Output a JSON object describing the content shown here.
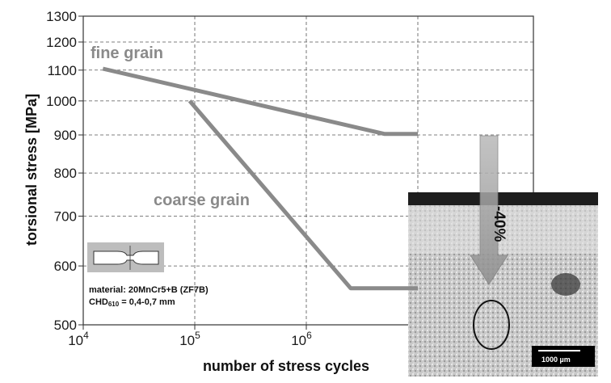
{
  "chart_data": {
    "type": "line",
    "xscale": "log",
    "yscale": "log",
    "xlim": [
      10000,
      10000000
    ],
    "ylim": [
      500,
      1300
    ],
    "grid": true,
    "xlabel": "number of stress cycles",
    "ylabel": "torsional stress [MPa]",
    "x_ticks": [
      {
        "value": 10000,
        "base": "10",
        "exp": "4"
      },
      {
        "value": 100000,
        "base": "10",
        "exp": "5"
      },
      {
        "value": 1000000,
        "base": "10",
        "exp": "6"
      }
    ],
    "y_ticks": [
      {
        "value": 500,
        "label": "500"
      },
      {
        "value": 600,
        "label": "600"
      },
      {
        "value": 700,
        "label": "700"
      },
      {
        "value": 800,
        "label": "800"
      },
      {
        "value": 900,
        "label": "900"
      },
      {
        "value": 1000,
        "label": "1000"
      },
      {
        "value": 1100,
        "label": "1100"
      },
      {
        "value": 1200,
        "label": "1200"
      },
      {
        "value": 1300,
        "label": "1300"
      }
    ],
    "series": [
      {
        "name": "fine grain",
        "color": "#8a8a8a",
        "points": [
          {
            "x": 15000,
            "y": 1105
          },
          {
            "x": 5000000,
            "y": 903
          },
          {
            "x": 10000000,
            "y": 903
          }
        ]
      },
      {
        "name": "coarse grain",
        "color": "#8a8a8a",
        "points": [
          {
            "x": 90000,
            "y": 1000
          },
          {
            "x": 2500000,
            "y": 560
          },
          {
            "x": 10000000,
            "y": 560
          }
        ]
      }
    ],
    "annotations": {
      "reduction": "-40%",
      "material_line1": "material: 20MnCr5+B (ZF7B)",
      "material_line2_prefix": "CHD",
      "material_line2_sub": "610",
      "material_line2_suffix": " = 0,4-0,7 mm",
      "scale_bar": "1000 µm"
    }
  }
}
